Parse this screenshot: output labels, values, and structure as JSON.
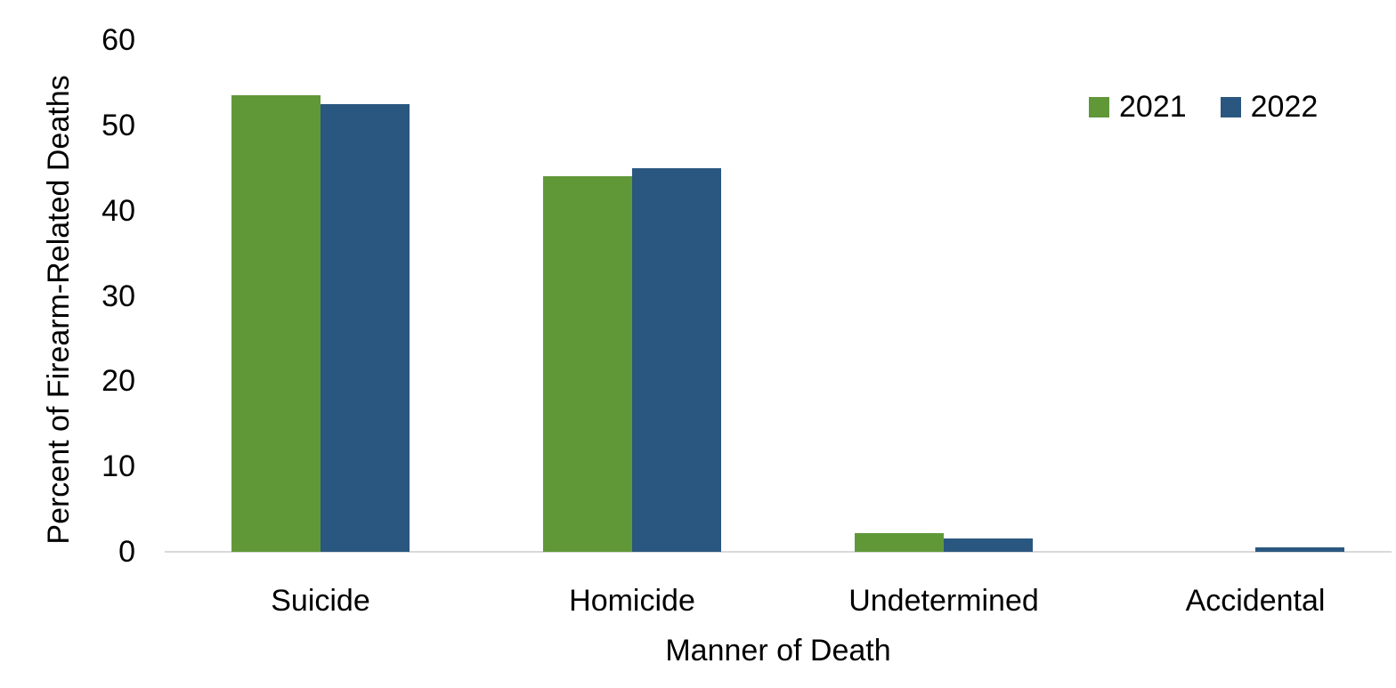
{
  "chart_data": {
    "type": "bar",
    "title": "",
    "xlabel": "Manner of Death",
    "ylabel": "Percent of Firearm-Related Deaths",
    "categories": [
      "Suicide",
      "Homicide",
      "Undetermined",
      "Accidental"
    ],
    "series": [
      {
        "name": "2021",
        "color": "#609838",
        "values": [
          53.5,
          44.0,
          2.2,
          0.0
        ]
      },
      {
        "name": "2022",
        "color": "#2A5780",
        "values": [
          52.5,
          45.0,
          1.6,
          0.5
        ]
      }
    ],
    "ylim": [
      0,
      60
    ],
    "yticks": [
      0,
      10,
      20,
      30,
      40,
      50,
      60
    ],
    "grid": false,
    "legend_position": "top-right",
    "legend_entries": [
      "2021",
      "2022"
    ],
    "axis_line_color": "#D9D9D9",
    "text_color": "#000000"
  }
}
